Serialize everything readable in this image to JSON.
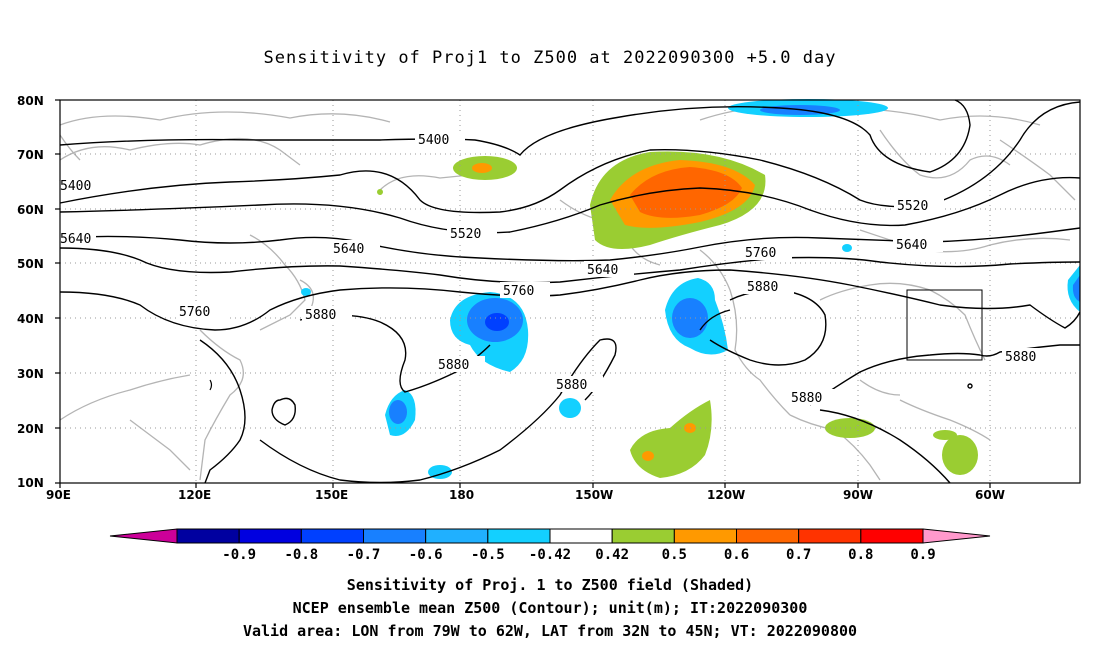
{
  "title": "Sensitivity of Proj1 to Z500 at 2022090300 +5.0 day",
  "axes": {
    "lat_labels": [
      "80N",
      "70N",
      "60N",
      "50N",
      "40N",
      "30N",
      "20N",
      "10N"
    ],
    "lon_labels": [
      "90E",
      "120E",
      "150E",
      "180",
      "150W",
      "120W",
      "90W",
      "60W"
    ]
  },
  "contour_labels": [
    {
      "text": "5400",
      "id": "c5400a"
    },
    {
      "text": "5400",
      "id": "c5400b"
    },
    {
      "text": "5520",
      "id": "c5520a"
    },
    {
      "text": "5520",
      "id": "c5520b"
    },
    {
      "text": "5640",
      "id": "c5640a"
    },
    {
      "text": "5640",
      "id": "c5640b"
    },
    {
      "text": "5640",
      "id": "c5640c"
    },
    {
      "text": "5640",
      "id": "c5640d"
    },
    {
      "text": "5760",
      "id": "c5760a"
    },
    {
      "text": "5760",
      "id": "c5760b"
    },
    {
      "text": "5760",
      "id": "c5760c"
    },
    {
      "text": "5880",
      "id": "c5880a"
    },
    {
      "text": "5880",
      "id": "c5880b"
    },
    {
      "text": "5880",
      "id": "c5880c"
    },
    {
      "text": "5880",
      "id": "c5880d"
    },
    {
      "text": "5880",
      "id": "c5880e"
    },
    {
      "text": "5880",
      "id": "c5880f"
    }
  ],
  "colorbar": {
    "ticks": [
      "-0.9",
      "-0.8",
      "-0.7",
      "-0.6",
      "-0.5",
      "-0.42",
      "0.42",
      "0.5",
      "0.6",
      "0.7",
      "0.8",
      "0.9"
    ],
    "colors": [
      "#cc0099",
      "#0000a0",
      "#0000e0",
      "#0040ff",
      "#1880ff",
      "#20b0ff",
      "#13d0ff",
      "#ffffff",
      "#9acd32",
      "#ff9900",
      "#ff6600",
      "#ff3300",
      "#ff0000",
      "#ff99cc"
    ]
  },
  "box": {
    "label": "Valid area",
    "lon_from": "79W",
    "lon_to": "62W",
    "lat_from": "32N",
    "lat_to": "45N"
  },
  "footer": {
    "line1": "Sensitivity of Proj. 1 to Z500 field (Shaded)",
    "line2": "NCEP ensemble mean Z500 (Contour); unit(m); IT:2022090300",
    "line3": "Valid area: LON from 79W to 62W, LAT from 32N to 45N; VT: 2022090800"
  }
}
